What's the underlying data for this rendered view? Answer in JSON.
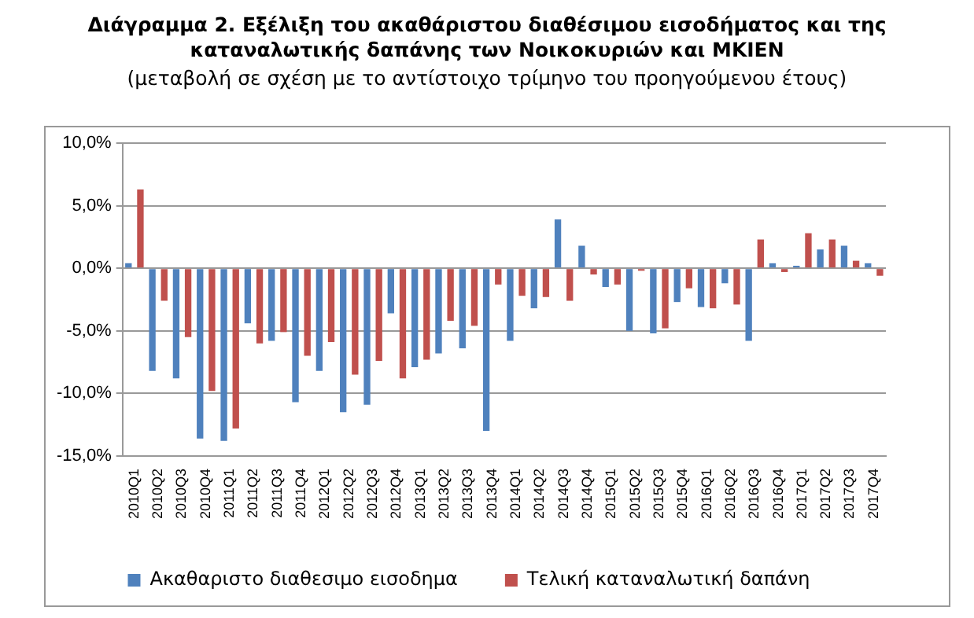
{
  "chart_data": {
    "type": "bar",
    "title": "Διάγραμμα 2. Εξέλιξη του ακαθάριστου διαθέσιμου εισοδήματος και της καταναλωτικής δαπάνης των Νοικοκυριών και ΜΚΙΕΝ",
    "subtitle": "(μεταβολή σε σχέση με το αντίστοιχο τρίμηνο του προηγούμενου έτους)",
    "categories": [
      "2010Q1",
      "2010Q2",
      "2010Q3",
      "2010Q4",
      "2011Q1",
      "2011Q2",
      "2011Q3",
      "2011Q4",
      "2012Q1",
      "2012Q2",
      "2012Q3",
      "2012Q4",
      "2013Q1",
      "2013Q2",
      "2013Q3",
      "2013Q4",
      "2014Q1",
      "2014Q2",
      "2014Q3",
      "2014Q4",
      "2015Q1",
      "2015Q2",
      "2015Q3",
      "2015Q4",
      "2016Q1",
      "2016Q2",
      "2016Q3",
      "2016Q4",
      "2017Q1",
      "2017Q2",
      "2017Q3",
      "2017Q4"
    ],
    "series": [
      {
        "name": "Ακαθαριστο διαθεσιμο εισοδημα",
        "color": "#4f81bd",
        "values": [
          0.4,
          -8.2,
          -8.8,
          -13.6,
          -13.8,
          -4.4,
          -5.8,
          -10.7,
          -8.2,
          -11.5,
          -10.9,
          -3.6,
          -7.9,
          -6.8,
          -6.4,
          -13.0,
          -5.8,
          -3.2,
          3.9,
          1.8,
          -1.5,
          -5.0,
          -5.2,
          -2.7,
          -3.1,
          -1.2,
          -5.8,
          0.4,
          0.2,
          1.5,
          1.8,
          0.4
        ]
      },
      {
        "name": "Τελική καταναλωτική δαπάνη",
        "color": "#c0504d",
        "values": [
          6.3,
          -2.6,
          -5.5,
          -9.8,
          -12.8,
          -6.0,
          -5.1,
          -7.0,
          -5.9,
          -8.5,
          -7.4,
          -8.8,
          -7.3,
          -4.2,
          -4.6,
          -1.3,
          -2.2,
          -2.3,
          -2.6,
          -0.5,
          -1.3,
          -0.2,
          -4.8,
          -1.6,
          -3.2,
          -2.9,
          2.3,
          -0.3,
          2.8,
          2.3,
          0.6,
          -0.6
        ]
      }
    ],
    "ylim": [
      -15,
      10
    ],
    "yticks": [
      {
        "value": -15,
        "label": "-15,0%"
      },
      {
        "value": -10,
        "label": "-10,0%"
      },
      {
        "value": -5,
        "label": "-5,0%"
      },
      {
        "value": 0,
        "label": "0,0%"
      },
      {
        "value": 5,
        "label": "5,0%"
      },
      {
        "value": 10,
        "label": "10,0%"
      }
    ],
    "grid": "y",
    "legend": "bottom"
  }
}
